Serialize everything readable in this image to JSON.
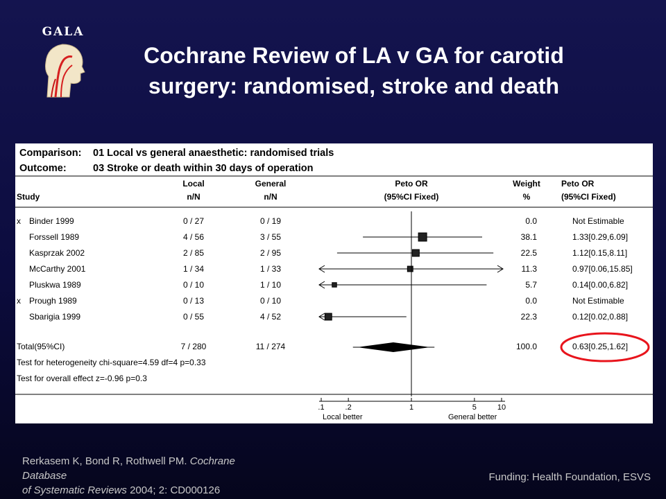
{
  "logo_text": "GALA",
  "title_line1": "Cochrane Review of LA v GA for carotid",
  "title_line2": "surgery: randomised, stroke and death",
  "reference": {
    "authors": "Rerkasem K, Bond R, Rothwell PM.",
    "journal_line1": "Cochrane",
    "journal_line2": "Database",
    "journal_line3": "of Systematic Reviews",
    "citation": "2004; 2: CD000126"
  },
  "funding": "Funding: Health Foundation, ESVS",
  "chart_data": {
    "type": "forest",
    "comparison_label": "Comparison:",
    "comparison": "01 Local vs general anaesthetic:  randomised trials",
    "outcome_label": "Outcome:",
    "outcome": "03 Stroke or death within 30 days of operation",
    "column_headers": {
      "study": "Study",
      "local": "Local",
      "local_sub": "n/N",
      "general": "General",
      "general_sub": "n/N",
      "peto": "Peto OR",
      "peto_sub": "(95%CI Fixed)",
      "weight": "Weight",
      "weight_sub": "%",
      "peto2": "Peto OR",
      "peto2_sub": "(95%CI Fixed)"
    },
    "x_axis": {
      "scale": "log",
      "range": [
        0.1,
        10
      ],
      "ticks": [
        0.1,
        0.2,
        1,
        5,
        10
      ],
      "tick_labels": [
        ".1",
        ".2",
        "1",
        "5",
        "10"
      ],
      "left_label": "Local better",
      "right_label": "General better"
    },
    "studies": [
      {
        "excluded": true,
        "name": "Binder 1999",
        "local": "0 / 27",
        "general": "0 / 19",
        "weight": "0.0",
        "or_text": "Not Estimable"
      },
      {
        "excluded": false,
        "name": "Forssell 1989",
        "local": "4 / 56",
        "general": "3 / 55",
        "weight": "38.1",
        "or_text": "1.33[0.29,6.09]",
        "or": 1.33,
        "lo": 0.29,
        "hi": 6.09
      },
      {
        "excluded": false,
        "name": "Kasprzak 2002",
        "local": "2 / 85",
        "general": "2 / 95",
        "weight": "22.5",
        "or_text": "1.12[0.15,8.11]",
        "or": 1.12,
        "lo": 0.15,
        "hi": 8.11
      },
      {
        "excluded": false,
        "name": "McCarthy  2001",
        "local": "1 / 34",
        "general": "1 / 33",
        "weight": "11.3",
        "or_text": "0.97[0.06,15.85]",
        "or": 0.97,
        "lo": 0.06,
        "hi": 15.85
      },
      {
        "excluded": false,
        "name": "Pluskwa 1989",
        "local": "0 / 10",
        "general": "1 / 10",
        "weight": "5.7",
        "or_text": "0.14[0.00,6.82]",
        "or": 0.14,
        "lo": 0.0,
        "hi": 6.82
      },
      {
        "excluded": true,
        "name": "Prough 1989",
        "local": "0 / 13",
        "general": "0 / 10",
        "weight": "0.0",
        "or_text": "Not Estimable"
      },
      {
        "excluded": false,
        "name": "Sbarigia 1999",
        "local": "0 / 55",
        "general": "4 / 52",
        "weight": "22.3",
        "or_text": "0.12[0.02,0.88]",
        "or": 0.12,
        "lo": 0.02,
        "hi": 0.88
      }
    ],
    "total": {
      "name": "Total(95%CI)",
      "local": "7 / 280",
      "general": "11 / 274",
      "weight": "100.0",
      "or_text": "0.63[0.25,1.62]",
      "or": 0.63,
      "lo": 0.25,
      "hi": 1.62
    },
    "heterogeneity": "Test for heterogeneity chi-square=4.59  df=4  p=0.33",
    "overall_effect": "Test for overall effect  z=-0.96  p=0.3",
    "highlight_color": "#e8141c"
  }
}
